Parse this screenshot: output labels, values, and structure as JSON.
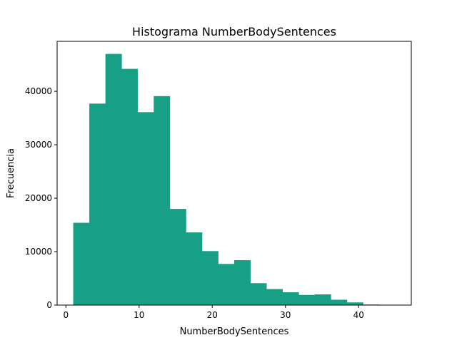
{
  "chart_data": {
    "type": "bar",
    "title": "Histograma NumberBodySentences",
    "xlabel": "NumberBodySentences",
    "ylabel": "Frecuencia",
    "xlim": [
      -1.2,
      47.2
    ],
    "ylim": [
      0,
      49350
    ],
    "xticks": [
      0,
      10,
      20,
      30,
      40
    ],
    "yticks": [
      0,
      10000,
      20000,
      30000,
      40000
    ],
    "bar_color": "#17a085",
    "bins": [
      {
        "x0": 1.0,
        "x1": 3.2,
        "value": 15400
      },
      {
        "x0": 3.2,
        "x1": 5.4,
        "value": 37700
      },
      {
        "x0": 5.4,
        "x1": 7.6,
        "value": 47000
      },
      {
        "x0": 7.6,
        "x1": 9.8,
        "value": 44200
      },
      {
        "x0": 9.8,
        "x1": 12.0,
        "value": 36100
      },
      {
        "x0": 12.0,
        "x1": 14.2,
        "value": 39100
      },
      {
        "x0": 14.2,
        "x1": 16.4,
        "value": 18000
      },
      {
        "x0": 16.4,
        "x1": 18.6,
        "value": 13600
      },
      {
        "x0": 18.6,
        "x1": 20.8,
        "value": 10100
      },
      {
        "x0": 20.8,
        "x1": 23.0,
        "value": 7700
      },
      {
        "x0": 23.0,
        "x1": 25.2,
        "value": 8400
      },
      {
        "x0": 25.2,
        "x1": 27.4,
        "value": 4100
      },
      {
        "x0": 27.4,
        "x1": 29.6,
        "value": 3000
      },
      {
        "x0": 29.6,
        "x1": 31.8,
        "value": 2400
      },
      {
        "x0": 31.8,
        "x1": 34.0,
        "value": 1900
      },
      {
        "x0": 34.0,
        "x1": 36.2,
        "value": 2000
      },
      {
        "x0": 36.2,
        "x1": 38.4,
        "value": 1000
      },
      {
        "x0": 38.4,
        "x1": 40.6,
        "value": 500
      },
      {
        "x0": 40.6,
        "x1": 42.8,
        "value": 100
      },
      {
        "x0": 42.8,
        "x1": 45.0,
        "value": 30
      }
    ],
    "grid": false,
    "legend": "none"
  }
}
